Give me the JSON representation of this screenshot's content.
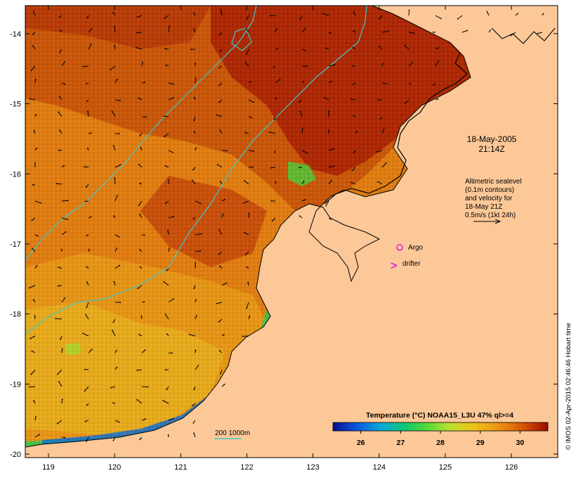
{
  "chart_data": {
    "type": "heatmap",
    "title": "Temperature (°C) NOAA15_L3U 47% ql>=4",
    "x_ticks": [
      "119",
      "120",
      "121",
      "122",
      "123",
      "124",
      "125",
      "126"
    ],
    "y_ticks": [
      "-14",
      "-15",
      "-16",
      "-17",
      "-18",
      "-19",
      "-20"
    ],
    "xlim": [
      118.65,
      126.7
    ],
    "ylim": [
      -20.05,
      -13.6
    ],
    "colorbar": {
      "ticks": [
        "26",
        "27",
        "28",
        "29",
        "30"
      ],
      "range": [
        25.3,
        30.7
      ],
      "colors": [
        "#08108c",
        "#0a4fd8",
        "#0aa8d8",
        "#12c870",
        "#58d838",
        "#b8e030",
        "#e8c818",
        "#f0a018",
        "#e07008",
        "#c83c00",
        "#9a0a00"
      ]
    }
  },
  "annotations": {
    "date": "18-May-2005",
    "time": "21:14Z",
    "sealevel_lines": [
      "Altimetric sealevel",
      "(0.1m contours)",
      "and velocity for",
      "18-May 21Z",
      "0.5m/s (1kt 24h)"
    ],
    "argo_label": "Argo",
    "drifter_label": "drifter",
    "drifter_symbol": ">",
    "depth_legend": "200 1000m"
  },
  "credit": "© IMOS 02-Apr-2015 02:46:46 Hobart time",
  "colors": {
    "land": "#fcc898",
    "bathymetry": "#40c8c8",
    "argo": "#e020e0",
    "warm": "#9a0a00",
    "mid": "#e07008",
    "cool": "#e8c818"
  }
}
